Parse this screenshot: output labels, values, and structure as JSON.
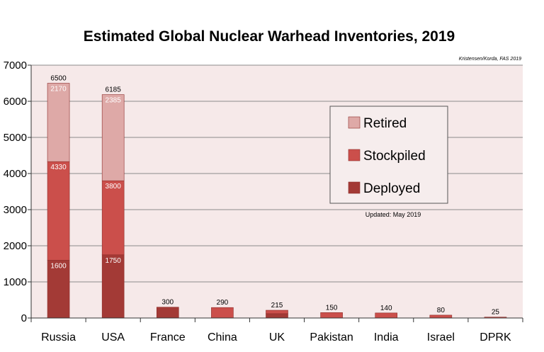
{
  "chart_data": {
    "type": "bar",
    "stacked": true,
    "title": "Estimated Global Nuclear Warhead Inventories, 2019",
    "credit": "Kristensen/Korda, FAS 2019",
    "updated": "Updated: May 2019",
    "categories": [
      "Russia",
      "USA",
      "France",
      "China",
      "UK",
      "Pakistan",
      "India",
      "Israel",
      "DPRK"
    ],
    "series": [
      {
        "name": "Deployed",
        "color": "#a33a36",
        "values": [
          1600,
          1750,
          300,
          0,
          120,
          0,
          0,
          0,
          0
        ]
      },
      {
        "name": "Stockpiled",
        "color": "#cb4f4b",
        "values": [
          2730,
          2050,
          0,
          290,
          95,
          150,
          140,
          80,
          25
        ]
      },
      {
        "name": "Retired",
        "color": "#dea9a7",
        "values": [
          2170,
          2385,
          0,
          0,
          0,
          0,
          0,
          0,
          0
        ]
      }
    ],
    "totals": [
      "6500",
      "6185",
      "300",
      "290",
      "215",
      "150",
      "140",
      "80",
      "25"
    ],
    "segment_labels": [
      [
        "1600",
        "4330",
        "2170"
      ],
      [
        "1750",
        "3800",
        "2385"
      ],
      [
        "",
        "",
        ""
      ],
      [
        "",
        "",
        ""
      ],
      [
        "",
        "",
        ""
      ],
      [
        "",
        "",
        ""
      ],
      [
        "",
        "",
        ""
      ],
      [
        "",
        "",
        ""
      ],
      [
        "",
        "",
        ""
      ]
    ],
    "legend_order": [
      "Retired",
      "Stockpiled",
      "Deployed"
    ],
    "legend_position": "right",
    "ylim": [
      0,
      7000
    ],
    "yticks": [
      "0",
      "1000",
      "2000",
      "3000",
      "4000",
      "5000",
      "6000",
      "7000"
    ],
    "grid": true,
    "plot_background": "#f6e9e9"
  }
}
